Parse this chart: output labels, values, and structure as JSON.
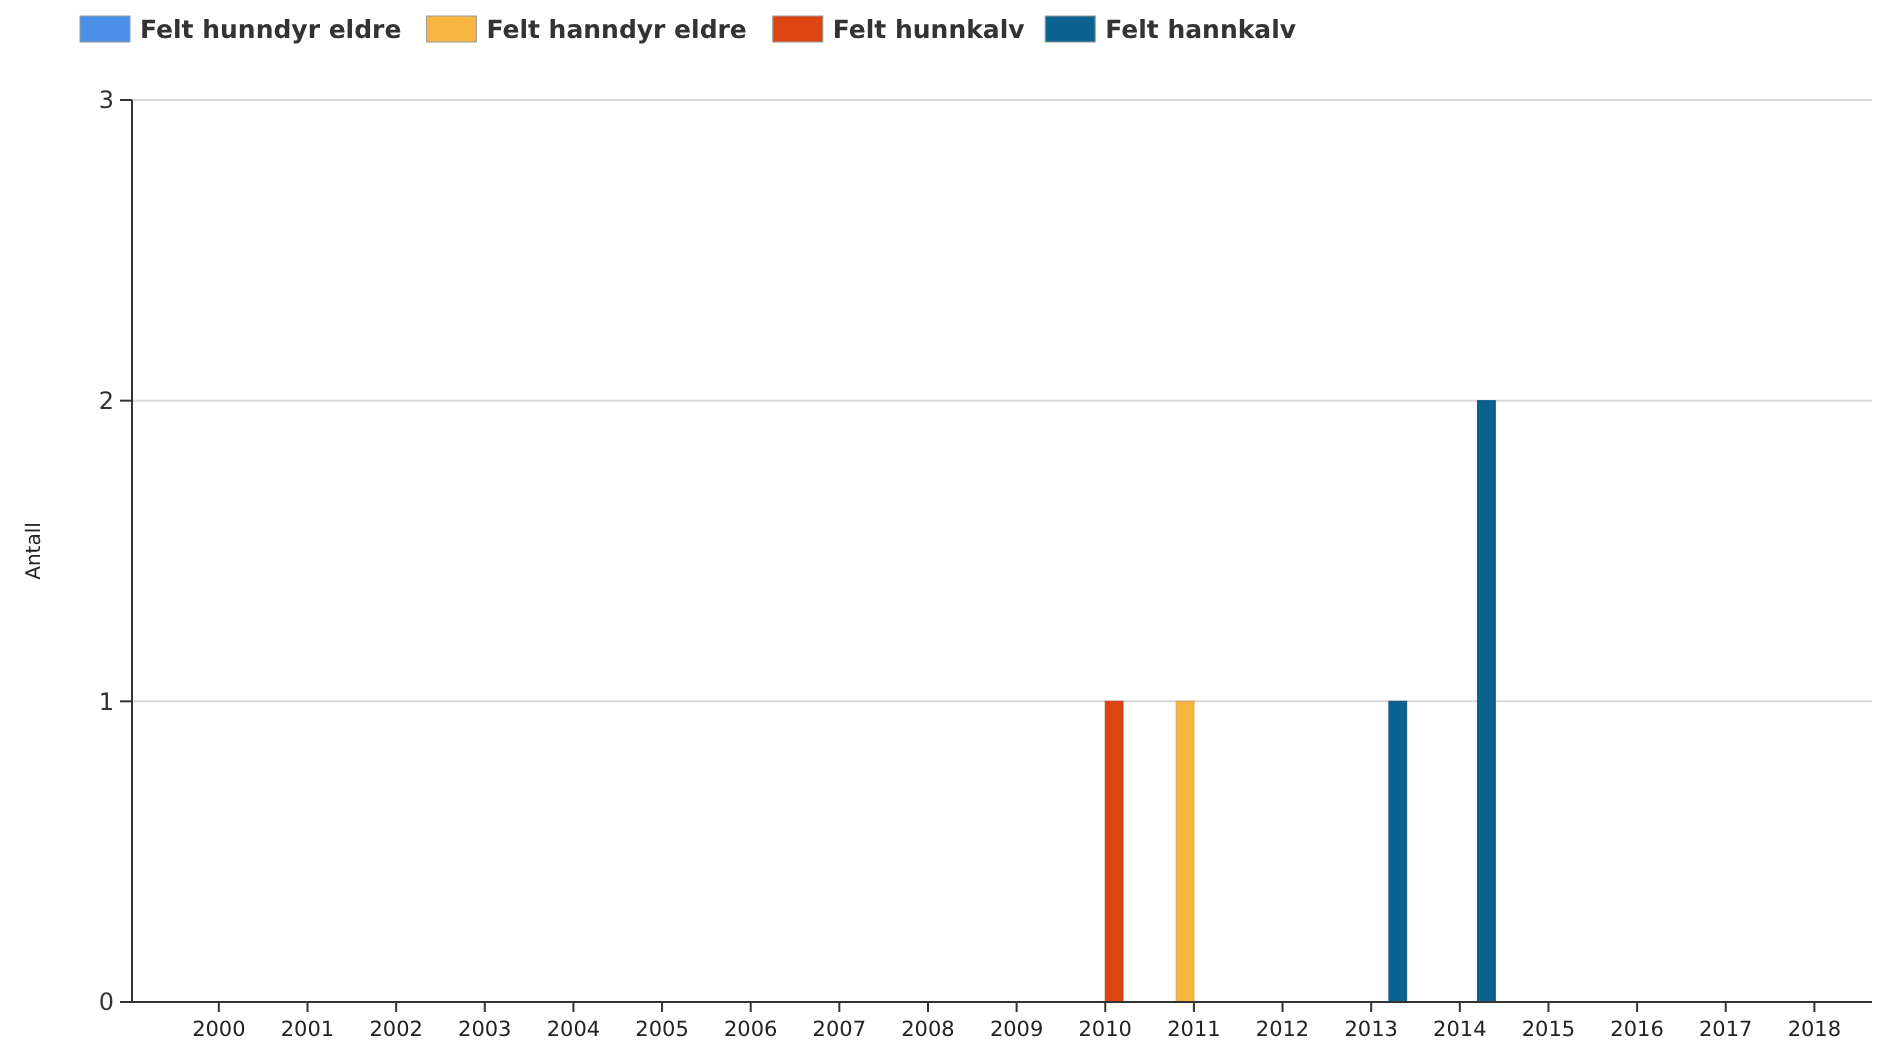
{
  "chart_data": {
    "type": "bar",
    "ylabel": "Antall",
    "categories": [
      "2000",
      "2001",
      "2002",
      "2003",
      "2004",
      "2005",
      "2006",
      "2007",
      "2008",
      "2009",
      "2010",
      "2011",
      "2012",
      "2013",
      "2014",
      "2015",
      "2016",
      "2017",
      "2018"
    ],
    "series": [
      {
        "name": "Felt hunndyr eldre",
        "color": "#4a8fe8",
        "values": [
          0,
          0,
          0,
          0,
          0,
          0,
          0,
          0,
          0,
          0,
          0,
          0,
          0,
          0,
          0,
          0,
          0,
          0,
          0
        ]
      },
      {
        "name": "Felt hanndyr eldre",
        "color": "#f7b440",
        "values": [
          0,
          0,
          0,
          0,
          0,
          0,
          0,
          0,
          0,
          0,
          0,
          1,
          0,
          0,
          0,
          0,
          0,
          0,
          0
        ]
      },
      {
        "name": "Felt hunnkalv",
        "color": "#dc4412",
        "values": [
          0,
          0,
          0,
          0,
          0,
          0,
          0,
          0,
          0,
          0,
          1,
          0,
          0,
          0,
          0,
          0,
          0,
          0,
          0
        ]
      },
      {
        "name": "Felt hannkalv",
        "color": "#0b6190",
        "values": [
          0,
          0,
          0,
          0,
          0,
          0,
          0,
          0,
          0,
          0,
          0,
          0,
          0,
          1,
          2,
          0,
          0,
          0,
          0
        ]
      }
    ],
    "ylim": [
      0,
      3
    ],
    "yticks": [
      0,
      1,
      2,
      3
    ],
    "grid": "y",
    "legend": "top left"
  }
}
